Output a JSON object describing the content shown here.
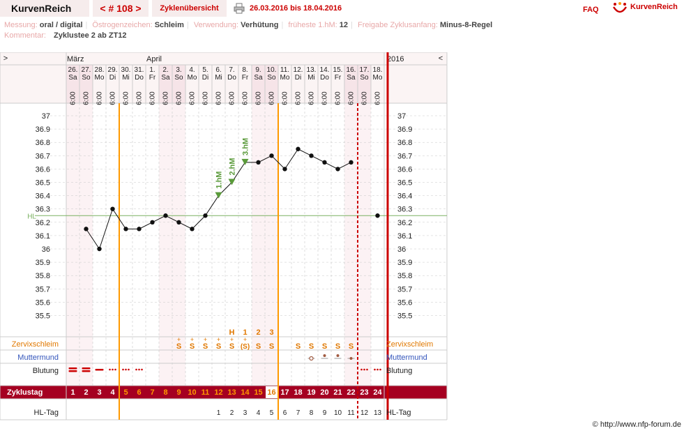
{
  "header": {
    "brand": "KurvenReich",
    "cycle_prev": "<",
    "cycle_label": "# 108",
    "cycle_next": ">",
    "overview_label": "Zyklenübersicht",
    "date_range": "26.03.2016 bis 18.04.2016",
    "faq_label": "FAQ",
    "logo_text": "KurvenReich"
  },
  "meta": {
    "row1": [
      {
        "label": "Messung:",
        "value": "oral / digital"
      },
      {
        "label": "Östrogenzeichen:",
        "value": "Schleim"
      },
      {
        "label": "Verwendung:",
        "value": "Verhütung"
      },
      {
        "label": "früheste 1.hM:",
        "value": "12"
      },
      {
        "label": "Freigabe Zyklusanfang:",
        "value": "Minus-8-Regel"
      }
    ],
    "row2": [
      {
        "label": "Kommentar:",
        "value": "Zyklustee 2 ab ZT12"
      }
    ]
  },
  "chart_data": {
    "type": "line",
    "nav_left": ">",
    "nav_right": "<",
    "year": "2016",
    "months": [
      {
        "label": "März",
        "day_index": 0
      },
      {
        "label": "April",
        "day_index": 6
      }
    ],
    "days": [
      "26.",
      "27.",
      "28.",
      "29.",
      "30.",
      "31.",
      "1.",
      "2.",
      "3.",
      "4.",
      "5.",
      "6.",
      "7.",
      "8.",
      "9.",
      "10.",
      "11.",
      "12.",
      "13.",
      "14.",
      "15.",
      "16.",
      "17.",
      "18."
    ],
    "weekdays": [
      "Sa",
      "So",
      "Mo",
      "Di",
      "Mi",
      "Do",
      "Fr",
      "Sa",
      "So",
      "Mo",
      "Di",
      "Mi",
      "Do",
      "Fr",
      "Sa",
      "So",
      "Mo",
      "Di",
      "Mi",
      "Do",
      "Fr",
      "Sa",
      "So",
      "Mo"
    ],
    "weekend_days": [
      0,
      1,
      7,
      8,
      14,
      15,
      21,
      22
    ],
    "time": "6:00",
    "temperatures": [
      null,
      36.15,
      36.0,
      36.3,
      36.15,
      36.15,
      36.2,
      36.25,
      36.2,
      36.15,
      36.25,
      36.4,
      36.5,
      36.65,
      36.65,
      36.7,
      36.6,
      36.75,
      36.7,
      36.65,
      36.6,
      36.65,
      null,
      36.25
    ],
    "ylim": [
      35.5,
      37.0
    ],
    "yticks": [
      "37",
      "36.9",
      "36.8",
      "36.7",
      "36.6",
      "36.5",
      "36.4",
      "36.3",
      "36.2",
      "36.1",
      "36",
      "35.9",
      "35.8",
      "35.7",
      "35.6",
      "35.5"
    ],
    "coverline": {
      "label": "HL",
      "value": 36.25
    },
    "higher_measurements": [
      {
        "label": "1.hM",
        "day_index": 11
      },
      {
        "label": "2.hM",
        "day_index": 12
      },
      {
        "label": "3.hM",
        "day_index": 13
      }
    ],
    "mucus_peak": [
      {
        "label": "H",
        "day_index": 12
      },
      {
        "label": "1",
        "day_index": 13
      },
      {
        "label": "2",
        "day_index": 14
      },
      {
        "label": "3",
        "day_index": 15
      }
    ],
    "rows": {
      "zervixschleim": "Zervixschleim",
      "muttermund": "Muttermund",
      "blutung": "Blutung",
      "zyklustag": "Zyklustag",
      "hltag": "HL-Tag"
    },
    "mucus": [
      "",
      "",
      "",
      "",
      "",
      "",
      "",
      "",
      "S+",
      "S+",
      "S+",
      "S+",
      "S+",
      "(S+)",
      "S",
      "S",
      "",
      "S",
      "S",
      "S",
      "S",
      "S",
      "",
      ""
    ],
    "cervix": [
      null,
      null,
      null,
      null,
      null,
      null,
      null,
      null,
      null,
      null,
      null,
      null,
      null,
      null,
      null,
      null,
      null,
      null,
      "open",
      "mid",
      "mid",
      "low",
      null,
      null
    ],
    "bleeding": [
      "heavy",
      "heavy",
      "medium",
      "light",
      "light",
      "light",
      "",
      "",
      "",
      "",
      "",
      "",
      "",
      "",
      "",
      "",
      "",
      "",
      "",
      "",
      "",
      "",
      "light",
      "light"
    ],
    "cycle_days": [
      "1",
      "2",
      "3",
      "4",
      "5",
      "6",
      "7",
      "8",
      "9",
      "10",
      "11",
      "12",
      "13",
      "14",
      "15",
      "16",
      "17",
      "18",
      "19",
      "20",
      "21",
      "22",
      "23",
      "24"
    ],
    "hl_days": [
      "",
      "",
      "",
      "",
      "",
      "",
      "",
      "",
      "",
      "",
      "",
      "1",
      "2",
      "3",
      "4",
      "5",
      "6",
      "7",
      "8",
      "9",
      "10",
      "11",
      "12",
      "13"
    ],
    "orange_days": [
      4,
      5,
      6,
      7,
      8,
      9,
      10,
      11,
      12,
      13,
      14,
      15
    ],
    "highlight_day": 15,
    "vlines": [
      {
        "after_day": 3,
        "style": "solid"
      },
      {
        "after_day": 15,
        "style": "solid"
      },
      {
        "after_day": 21,
        "style": "dotted"
      }
    ],
    "colors": {
      "accent": "#cc0000",
      "bar": "#a50021",
      "orange": "#ff9900",
      "orange_text": "#e07800",
      "green": "#5a9a3a",
      "coverline": "#7ab060",
      "grid": "#c8c8c8",
      "weekend": "#f6e4e8",
      "panel": "#fbf4f4",
      "blue": "#3355bb"
    }
  },
  "footer": {
    "copyright": "© http://www.nfp-forum.de"
  }
}
